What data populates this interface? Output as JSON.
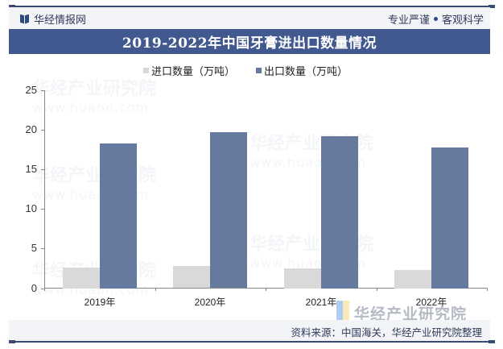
{
  "header": {
    "brand": "华经情报网",
    "slogan_left": "专业严谨",
    "slogan_right": "客观科学",
    "title": "2019-2022年中国牙膏进出口数量情况"
  },
  "footer": {
    "source": "资料来源：中国海关，华经产业研究院整理",
    "watermark_logo": "华经产业研究院"
  },
  "watermark": {
    "text": "华经产业研究院",
    "url": "www.huaon.com"
  },
  "colors": {
    "frame": "#3a4a72",
    "title_band": "#41598f",
    "import": "#d9d9d9",
    "export": "#667aa0"
  },
  "legend": [
    {
      "label": "进口数量（万吨）",
      "color": "#d9d9d9"
    },
    {
      "label": "出口数量（万吨）",
      "color": "#667aa0"
    }
  ],
  "axis": {
    "y_ticks": [
      "0",
      "5",
      "10",
      "15",
      "20",
      "25"
    ],
    "x_labels": [
      "2019年",
      "2020年",
      "2021年",
      "2022年"
    ]
  },
  "chart_data": {
    "type": "bar",
    "title": "2019-2022年中国牙膏进出口数量情况",
    "categories": [
      "2019年",
      "2020年",
      "2021年",
      "2022年"
    ],
    "series": [
      {
        "name": "进口数量（万吨）",
        "values": [
          2.6,
          2.8,
          2.5,
          2.3
        ],
        "color": "#d9d9d9"
      },
      {
        "name": "出口数量（万吨）",
        "values": [
          18.3,
          19.7,
          19.2,
          17.8
        ],
        "color": "#667aa0"
      }
    ],
    "xlabel": "",
    "ylabel": "",
    "ylim": [
      0,
      25
    ],
    "yticks": [
      0,
      5,
      10,
      15,
      20,
      25
    ],
    "grid": false,
    "legend_position": "top",
    "source": "资料来源：中国海关，华经产业研究院整理"
  }
}
